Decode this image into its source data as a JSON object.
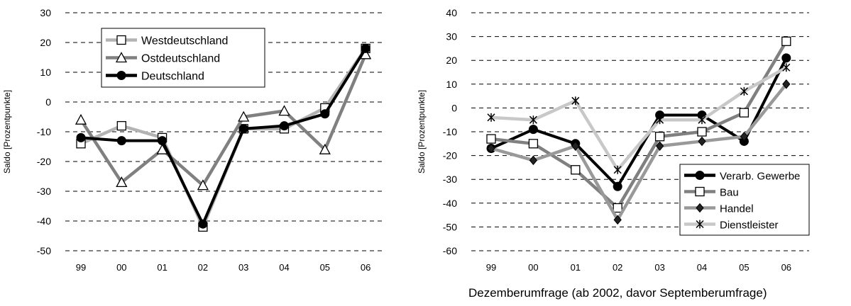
{
  "footer": "Dezemberumfrage (ab 2002, davor Septemberumfrage)",
  "chart_data": [
    {
      "type": "line",
      "ylabel": "Saldo [Prozentpunkte]",
      "categories": [
        "99",
        "00",
        "01",
        "02",
        "03",
        "04",
        "05",
        "06"
      ],
      "ylim": [
        -50,
        30
      ],
      "yticks": [
        30,
        20,
        10,
        0,
        -10,
        -20,
        -30,
        -40,
        -50
      ],
      "grid": "horizontal dashed",
      "legend": "top-left",
      "series": [
        {
          "name": "Westdeutschland",
          "marker": "square",
          "color": "#b3b3b3",
          "values": [
            -14,
            -8,
            -12,
            -42,
            -9,
            -9,
            -2,
            18
          ]
        },
        {
          "name": "Ostdeutschland",
          "marker": "triangle",
          "color": "#808080",
          "values": [
            -6,
            -27,
            -16,
            -28,
            -5,
            -3,
            -16,
            16
          ]
        },
        {
          "name": "Deutschland",
          "marker": "circle",
          "color": "#000000",
          "values": [
            -12,
            -13,
            -13,
            -41,
            -9,
            -8,
            -4,
            18
          ]
        }
      ]
    },
    {
      "type": "line",
      "ylabel": "Saldo [Prozentpunkte]",
      "categories": [
        "99",
        "00",
        "01",
        "02",
        "03",
        "04",
        "05",
        "06"
      ],
      "ylim": [
        -60,
        40
      ],
      "yticks": [
        40,
        30,
        20,
        10,
        0,
        -10,
        -20,
        -30,
        -40,
        -50,
        -60
      ],
      "grid": "horizontal dashed",
      "legend": "bottom-right",
      "series": [
        {
          "name": "Verarb. Gewerbe",
          "marker": "circle",
          "color": "#000000",
          "values": [
            -17,
            -9,
            -15,
            -33,
            -3,
            -3,
            -14,
            21
          ]
        },
        {
          "name": "Bau",
          "marker": "square",
          "color": "#808080",
          "values": [
            -13,
            -15,
            -26,
            -42,
            -12,
            -10,
            -2,
            28
          ]
        },
        {
          "name": "Handel",
          "marker": "diamond",
          "color": "#999999",
          "values": [
            -17,
            -22,
            -16,
            -47,
            -16,
            -14,
            -12,
            10
          ]
        },
        {
          "name": "Dienstleister",
          "marker": "star",
          "color": "#c8c8c8",
          "values": [
            -4,
            -5,
            3,
            -26,
            -5,
            -5,
            7,
            17
          ]
        }
      ]
    }
  ]
}
